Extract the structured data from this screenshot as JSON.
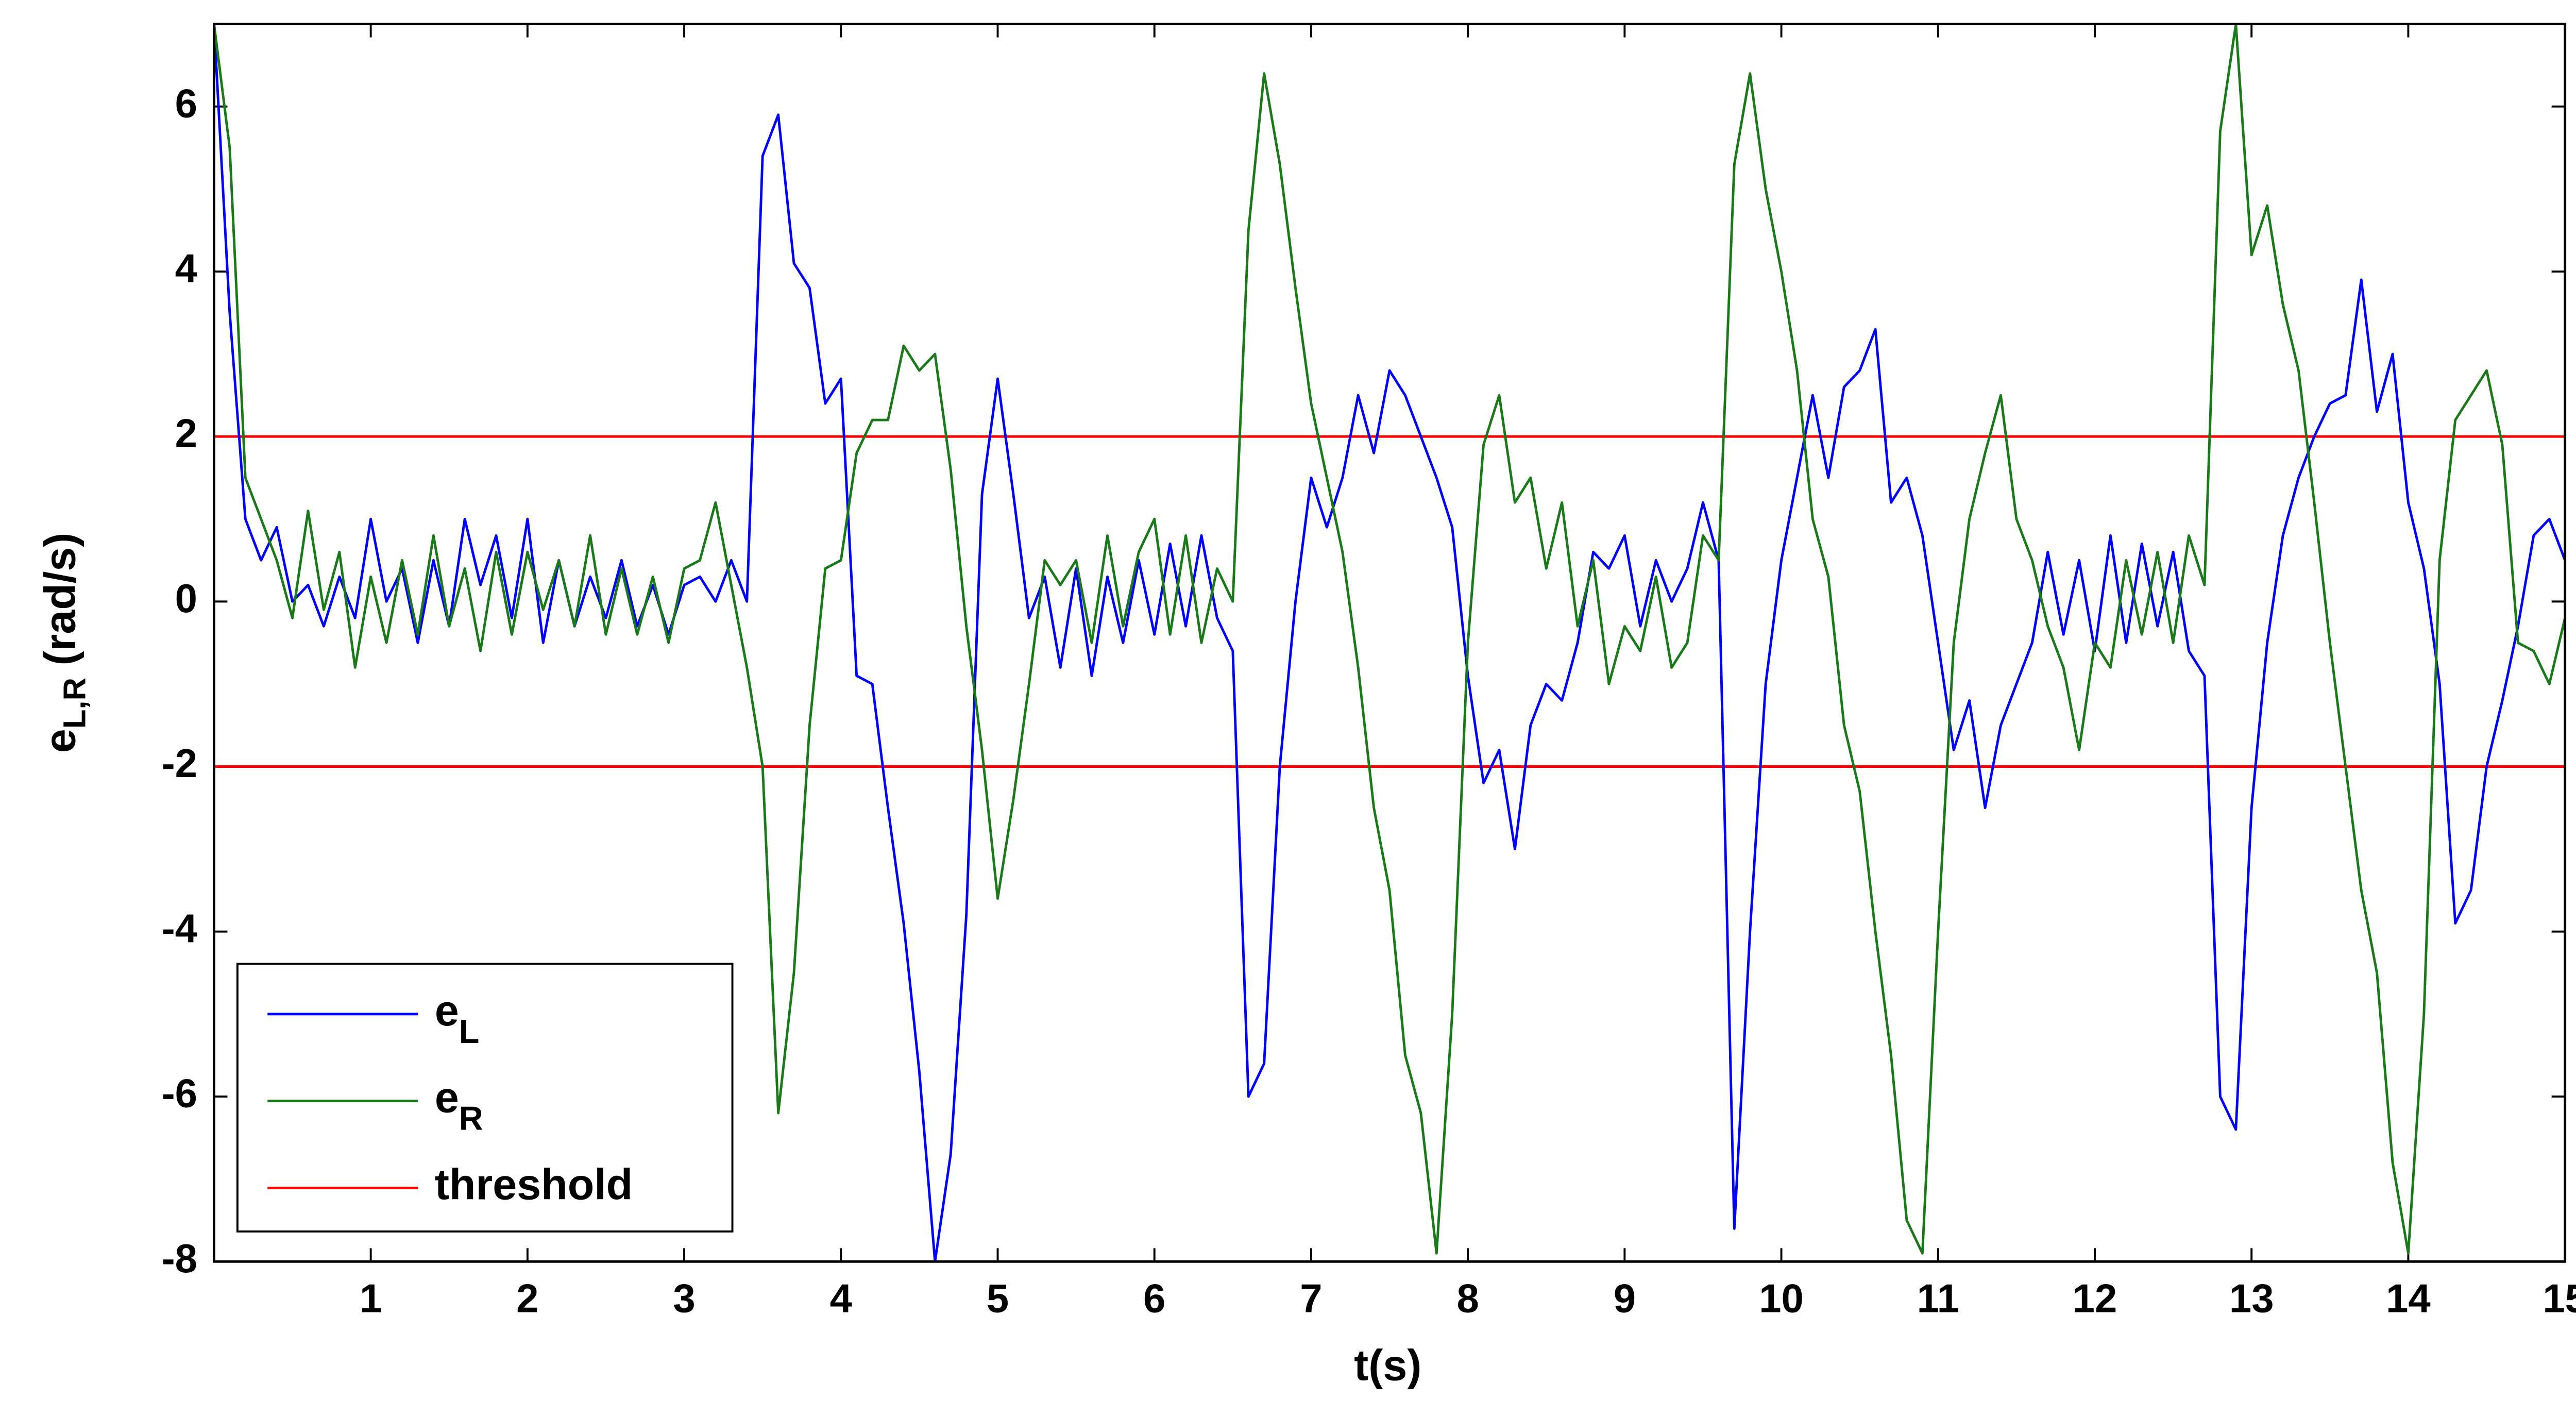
{
  "chart_data": {
    "type": "line",
    "xlabel": "t(s)",
    "ylabel": "e",
    "ylabel_sub": "L,R",
    "ylabel_unit": "(rad/s)",
    "xlim": [
      0,
      15
    ],
    "ylim": [
      -8,
      7
    ],
    "xticks": [
      1,
      2,
      3,
      4,
      5,
      6,
      7,
      8,
      9,
      10,
      11,
      12,
      13,
      14,
      15
    ],
    "yticks": [
      -8,
      -6,
      -4,
      -2,
      0,
      2,
      4,
      6
    ],
    "legend": "lower left",
    "x": [
      0,
      0.1,
      0.2,
      0.3,
      0.4,
      0.5,
      0.6,
      0.7,
      0.8,
      0.9,
      1,
      1.1,
      1.2,
      1.3,
      1.4,
      1.5,
      1.6,
      1.7,
      1.8,
      1.9,
      2,
      2.1,
      2.2,
      2.3,
      2.4,
      2.5,
      2.6,
      2.7,
      2.8,
      2.9,
      3,
      3.1,
      3.2,
      3.3,
      3.4,
      3.5,
      3.6,
      3.7,
      3.8,
      3.9,
      4,
      4.1,
      4.2,
      4.3,
      4.4,
      4.5,
      4.6,
      4.7,
      4.8,
      4.9,
      5,
      5.1,
      5.2,
      5.3,
      5.4,
      5.5,
      5.6,
      5.7,
      5.8,
      5.9,
      6,
      6.1,
      6.2,
      6.3,
      6.4,
      6.5,
      6.6,
      6.7,
      6.8,
      6.9,
      7,
      7.1,
      7.2,
      7.3,
      7.4,
      7.5,
      7.6,
      7.7,
      7.8,
      7.9,
      8,
      8.1,
      8.2,
      8.3,
      8.4,
      8.5,
      8.6,
      8.7,
      8.8,
      8.9,
      9,
      9.1,
      9.2,
      9.3,
      9.4,
      9.5,
      9.6,
      9.7,
      9.8,
      9.9,
      10,
      10.1,
      10.2,
      10.3,
      10.4,
      10.5,
      10.6,
      10.7,
      10.8,
      10.9,
      11,
      11.1,
      11.2,
      11.3,
      11.4,
      11.5,
      11.6,
      11.7,
      11.8,
      11.9,
      12,
      12.1,
      12.2,
      12.3,
      12.4,
      12.5,
      12.6,
      12.7,
      12.8,
      12.9,
      13,
      13.1,
      13.2,
      13.3,
      13.4,
      13.5,
      13.6,
      13.7,
      13.8,
      13.9,
      14,
      14.1,
      14.2,
      14.3,
      14.4,
      14.5,
      14.6,
      14.7,
      14.8,
      14.9,
      15
    ],
    "series": [
      {
        "name": "e",
        "subscript": "L",
        "color": "#0000ff",
        "values": [
          7,
          3.5,
          1.0,
          0.5,
          0.9,
          0,
          0.2,
          -0.3,
          0.3,
          -0.2,
          1.0,
          0,
          0.4,
          -0.5,
          0.5,
          -0.3,
          1.0,
          0.2,
          0.8,
          -0.2,
          1.0,
          -0.5,
          0.5,
          -0.3,
          0.3,
          -0.2,
          0.5,
          -0.3,
          0.2,
          -0.4,
          0.2,
          0.3,
          0,
          0.5,
          0,
          5.4,
          5.9,
          4.1,
          3.8,
          2.4,
          2.7,
          -0.9,
          -1.0,
          -2.5,
          -3.9,
          -5.7,
          -8.0,
          -6.7,
          -3.8,
          1.3,
          2.7,
          1.3,
          -0.2,
          0.3,
          -0.8,
          0.4,
          -0.9,
          0.3,
          -0.5,
          0.5,
          -0.4,
          0.7,
          -0.3,
          0.8,
          -0.2,
          -0.6,
          -6.0,
          -5.6,
          -2.0,
          0.0,
          1.5,
          0.9,
          1.5,
          2.5,
          1.8,
          2.8,
          2.5,
          2.0,
          1.5,
          0.9,
          -0.9,
          -2.2,
          -1.8,
          -3.0,
          -1.5,
          -1.0,
          -1.2,
          -0.5,
          0.6,
          0.4,
          0.8,
          -0.3,
          0.5,
          0,
          0.4,
          1.2,
          0.5,
          -7.6,
          -4.0,
          -1.0,
          0.5,
          1.5,
          2.5,
          1.5,
          2.6,
          2.8,
          3.3,
          1.2,
          1.5,
          0.8,
          -0.5,
          -1.8,
          -1.2,
          -2.5,
          -1.5,
          -1.0,
          -0.5,
          0.6,
          -0.4,
          0.5,
          -0.6,
          0.8,
          -0.5,
          0.7,
          -0.3,
          0.6,
          -0.6,
          -0.9,
          -6.0,
          -6.4,
          -2.5,
          -0.5,
          0.8,
          1.5,
          2.0,
          2.4,
          2.5,
          3.9,
          2.3,
          3.0,
          1.2,
          0.4,
          -1.0,
          -3.9,
          -3.5,
          -2.0,
          -1.2,
          -0.3,
          0.8,
          1.0,
          0.5
        ]
      },
      {
        "name": "e",
        "subscript": "R",
        "color": "#1a7a1a",
        "values": [
          7,
          5.5,
          1.5,
          1.0,
          0.5,
          -0.2,
          1.1,
          -0.1,
          0.6,
          -0.8,
          0.3,
          -0.5,
          0.5,
          -0.4,
          0.8,
          -0.3,
          0.4,
          -0.6,
          0.6,
          -0.4,
          0.6,
          -0.1,
          0.5,
          -0.3,
          0.8,
          -0.4,
          0.4,
          -0.4,
          0.3,
          -0.5,
          0.4,
          0.5,
          1.2,
          0.2,
          -0.8,
          -2.0,
          -6.2,
          -4.5,
          -1.5,
          0.4,
          0.5,
          1.8,
          2.2,
          2.2,
          3.1,
          2.8,
          3.0,
          1.6,
          -0.3,
          -1.8,
          -3.6,
          -2.4,
          -1.0,
          0.5,
          0.2,
          0.5,
          -0.5,
          0.8,
          -0.3,
          0.6,
          1.0,
          -0.4,
          0.8,
          -0.5,
          0.4,
          0,
          4.5,
          6.4,
          5.3,
          3.8,
          2.4,
          1.5,
          0.6,
          -0.8,
          -2.5,
          -3.5,
          -5.5,
          -6.2,
          -7.9,
          -5.0,
          -0.5,
          1.9,
          2.5,
          1.2,
          1.5,
          0.4,
          1.2,
          -0.3,
          0.5,
          -1.0,
          -0.3,
          -0.6,
          0.3,
          -0.8,
          -0.5,
          0.8,
          0.5,
          5.3,
          6.4,
          5.0,
          4.0,
          2.8,
          1.0,
          0.3,
          -1.5,
          -2.3,
          -4.0,
          -5.5,
          -7.5,
          -7.9,
          -4.0,
          -0.5,
          1.0,
          1.8,
          2.5,
          1.0,
          0.5,
          -0.3,
          -0.8,
          -1.8,
          -0.5,
          -0.8,
          0.5,
          -0.4,
          0.6,
          -0.5,
          0.8,
          0.2,
          5.7,
          7.0,
          4.2,
          4.8,
          3.6,
          2.8,
          1.2,
          -0.5,
          -2.0,
          -3.5,
          -4.5,
          -6.8,
          -7.9,
          -5.0,
          0.5,
          2.2,
          2.5,
          2.8,
          1.9,
          -0.5,
          -0.6,
          -1.0,
          -0.2
        ]
      }
    ],
    "threshold": {
      "name": "threshold",
      "color": "#ff0000",
      "values": [
        2,
        -2
      ]
    }
  }
}
